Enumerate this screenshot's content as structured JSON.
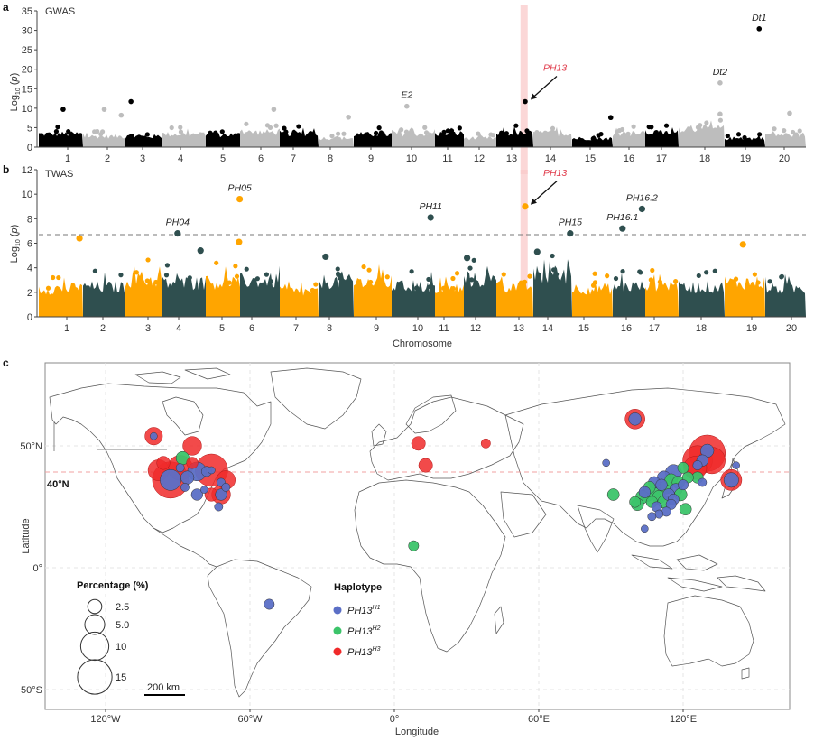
{
  "figure": {
    "panels": [
      "a",
      "b",
      "c"
    ]
  },
  "colors": {
    "gwas_dark": "#000000",
    "gwas_light": "#bdbdbd",
    "twas_orange": "#ffa500",
    "twas_dark": "#2f4f4f",
    "highlight_band": "#f9c9c9",
    "ph13_red": "#e03a4a",
    "hap_h1": "#5b6fc6",
    "hap_h2": "#3cc46a",
    "hap_h3": "#f02a2a",
    "lat40_line": "#f0a0a0",
    "map_border": "#555555"
  },
  "chart_data": [
    {
      "type": "scatter",
      "subtype": "manhattan",
      "panel": "a",
      "title": "GWAS",
      "xlabel": "",
      "ylabel": "Log10 (p)",
      "ylim": [
        0,
        35
      ],
      "yticks": [
        0,
        5,
        10,
        15,
        20,
        25,
        30,
        35
      ],
      "categories": [
        "1",
        "2",
        "3",
        "4",
        "5",
        "6",
        "7",
        "8",
        "9",
        "10",
        "11",
        "12",
        "13",
        "14",
        "15",
        "16",
        "17",
        "18",
        "19",
        "20"
      ],
      "threshold": 8.0,
      "highlight_chromosome_position": 13.3,
      "highlight_label": "PH13",
      "background_max_by_chromosome": [
        5.3,
        4.3,
        4.3,
        5.2,
        5.0,
        6.0,
        5.5,
        3.6,
        5.1,
        5.4,
        5.5,
        3.6,
        5.6,
        5.5,
        3.5,
        5.5,
        5.7,
        7.5,
        3.5,
        5.0
      ],
      "annotated_points": [
        {
          "chromosome": 1,
          "pos": 0.55,
          "value": 9.7,
          "label": ""
        },
        {
          "chromosome": 2,
          "pos": 0.5,
          "value": 9.7,
          "label": ""
        },
        {
          "chromosome": 2,
          "pos": 0.9,
          "value": 8.2,
          "label": ""
        },
        {
          "chromosome": 3,
          "pos": 0.15,
          "value": 11.7,
          "label": ""
        },
        {
          "chromosome": 6,
          "pos": 0.85,
          "value": 9.7,
          "label": ""
        },
        {
          "chromosome": 8,
          "pos": 0.85,
          "value": 7.7,
          "label": ""
        },
        {
          "chromosome": 10,
          "pos": 0.35,
          "value": 10.5,
          "label": "E2"
        },
        {
          "chromosome": 13,
          "pos": 0.78,
          "value": 11.7,
          "label": "PH13"
        },
        {
          "chromosome": 15,
          "pos": 0.95,
          "value": 7.6,
          "label": ""
        },
        {
          "chromosome": 18,
          "pos": 0.9,
          "value": 16.5,
          "label": "Dt2"
        },
        {
          "chromosome": 18,
          "pos": 0.9,
          "value": 8.5,
          "label": ""
        },
        {
          "chromosome": 19,
          "pos": 0.85,
          "value": 30.4,
          "label": "Dt1"
        },
        {
          "chromosome": 20,
          "pos": 0.6,
          "value": 8.7,
          "label": ""
        }
      ]
    },
    {
      "type": "scatter",
      "subtype": "manhattan",
      "panel": "b",
      "title": "TWAS",
      "xlabel": "Chromosome",
      "ylabel": "Log10 (p)",
      "ylim": [
        0,
        12
      ],
      "yticks": [
        0,
        2,
        4,
        6,
        8,
        10,
        12
      ],
      "categories": [
        "1",
        "2",
        "3",
        "4",
        "5",
        "6",
        "7",
        "8",
        "9",
        "10",
        "11",
        "12",
        "13",
        "14",
        "15",
        "16",
        "17",
        "18",
        "19",
        "20"
      ],
      "threshold": 6.7,
      "highlight_chromosome_position": 13.3,
      "highlight_label": "PH13",
      "background_max_by_chromosome": [
        3.6,
        3.8,
        4.7,
        4.3,
        4.4,
        4.6,
        3.2,
        4.5,
        4.4,
        3.9,
        3.6,
        4.7,
        3.9,
        5.2,
        3.6,
        3.9,
        4.1,
        3.8,
        4.4,
        3.6
      ],
      "annotated_points": [
        {
          "chromosome": 1,
          "pos": 0.92,
          "value": 6.4,
          "label": ""
        },
        {
          "chromosome": 4,
          "pos": 0.35,
          "value": 6.8,
          "label": "PH04"
        },
        {
          "chromosome": 4,
          "pos": 0.88,
          "value": 5.4,
          "label": ""
        },
        {
          "chromosome": 5,
          "pos": 0.97,
          "value": 6.1,
          "label": ""
        },
        {
          "chromosome": 5,
          "pos": 0.99,
          "value": 9.6,
          "label": "PH05"
        },
        {
          "chromosome": 8,
          "pos": 0.2,
          "value": 4.9,
          "label": ""
        },
        {
          "chromosome": 10,
          "pos": 0.9,
          "value": 8.1,
          "label": "PH11"
        },
        {
          "chromosome": 12,
          "pos": 0.1,
          "value": 4.8,
          "label": ""
        },
        {
          "chromosome": 13,
          "pos": 0.78,
          "value": 9.0,
          "label": "PH13"
        },
        {
          "chromosome": 14,
          "pos": 0.1,
          "value": 5.3,
          "label": ""
        },
        {
          "chromosome": 14,
          "pos": 0.95,
          "value": 6.8,
          "label": "PH15"
        },
        {
          "chromosome": 16,
          "pos": 0.3,
          "value": 7.2,
          "label": "PH16.1"
        },
        {
          "chromosome": 16,
          "pos": 0.9,
          "value": 8.8,
          "label": "PH16.2"
        },
        {
          "chromosome": 19,
          "pos": 0.45,
          "value": 5.9,
          "label": ""
        }
      ]
    },
    {
      "type": "scatter",
      "subtype": "bubble-map",
      "panel": "c",
      "xlabel": "Longitude",
      "ylabel": "Latitude",
      "xlim": [
        -150,
        160
      ],
      "ylim": [
        -60,
        85
      ],
      "xticks": [
        "120°W",
        "60°W",
        "0°",
        "60°E",
        "120°E"
      ],
      "xtick_values": [
        -120,
        -60,
        0,
        60,
        120
      ],
      "yticks": [
        "50°S",
        "0°",
        "50°N"
      ],
      "ytick_values": [
        -50,
        0,
        50
      ],
      "reference_line": {
        "lat": 40,
        "label": "40°N"
      },
      "scale_bar": "200 km",
      "size_legend": {
        "title": "Percentage (%)",
        "values": [
          2.5,
          5.0,
          10,
          15
        ],
        "labels": [
          "2.5",
          "5.0",
          "10",
          "15"
        ]
      },
      "color_legend": {
        "title": "Haplotype",
        "entries": [
          {
            "name": "PH13",
            "sup": "H1",
            "key": "H1"
          },
          {
            "name": "PH13",
            "sup": "H2",
            "key": "H2"
          },
          {
            "name": "PH13",
            "sup": "H3",
            "key": "H3"
          }
        ]
      },
      "points": [
        {
          "lon": -100,
          "lat": 54,
          "pct": 3.5,
          "hap": "H3"
        },
        {
          "lon": -100,
          "lat": 54,
          "pct": 0.6,
          "hap": "H1"
        },
        {
          "lon": -84,
          "lat": 50,
          "pct": 4.0,
          "hap": "H3"
        },
        {
          "lon": -88,
          "lat": 45,
          "pct": 2.0,
          "hap": "H2"
        },
        {
          "lon": -96,
          "lat": 43,
          "pct": 2.0,
          "hap": "H3"
        },
        {
          "lon": -98,
          "lat": 40,
          "pct": 5.0,
          "hap": "H3"
        },
        {
          "lon": -89,
          "lat": 41,
          "pct": 7.0,
          "hap": "H3"
        },
        {
          "lon": -89,
          "lat": 41,
          "pct": 0.8,
          "hap": "H1"
        },
        {
          "lon": -84,
          "lat": 43,
          "pct": 1.5,
          "hap": "H3"
        },
        {
          "lon": -82,
          "lat": 39.5,
          "pct": 4.0,
          "hap": "H1"
        },
        {
          "lon": -76,
          "lat": 40,
          "pct": 12.0,
          "hap": "H3"
        },
        {
          "lon": -76,
          "lat": 40,
          "pct": 0.6,
          "hap": "H1"
        },
        {
          "lon": -78,
          "lat": 39.5,
          "pct": 1.2,
          "hap": "H1"
        },
        {
          "lon": -93,
          "lat": 36,
          "pct": 15.0,
          "hap": "H3"
        },
        {
          "lon": -93,
          "lat": 36,
          "pct": 5.0,
          "hap": "H1"
        },
        {
          "lon": -86,
          "lat": 37,
          "pct": 2.0,
          "hap": "H1"
        },
        {
          "lon": -70,
          "lat": 36,
          "pct": 4.0,
          "hap": "H3"
        },
        {
          "lon": -72,
          "lat": 35,
          "pct": 0.8,
          "hap": "H1"
        },
        {
          "lon": -87,
          "lat": 33,
          "pct": 0.8,
          "hap": "H1"
        },
        {
          "lon": -79,
          "lat": 32,
          "pct": 0.6,
          "hap": "H1"
        },
        {
          "lon": -82,
          "lat": 30,
          "pct": 1.5,
          "hap": "H1"
        },
        {
          "lon": -76,
          "lat": 30,
          "pct": 2.0,
          "hap": "H3"
        },
        {
          "lon": -72,
          "lat": 30,
          "pct": 4.0,
          "hap": "H3"
        },
        {
          "lon": -72,
          "lat": 30,
          "pct": 1.5,
          "hap": "H1"
        },
        {
          "lon": -70,
          "lat": 33,
          "pct": 0.8,
          "hap": "H1"
        },
        {
          "lon": -73,
          "lat": 25,
          "pct": 0.8,
          "hap": "H1"
        },
        {
          "lon": -52,
          "lat": -15,
          "pct": 1.2,
          "hap": "H1"
        },
        {
          "lon": 10,
          "lat": 51,
          "pct": 2.2,
          "hap": "H3"
        },
        {
          "lon": 13,
          "lat": 42,
          "pct": 2.2,
          "hap": "H3"
        },
        {
          "lon": 38,
          "lat": 51,
          "pct": 1.0,
          "hap": "H3"
        },
        {
          "lon": 8,
          "lat": 9,
          "pct": 1.2,
          "hap": "H2"
        },
        {
          "lon": 100,
          "lat": 61,
          "pct": 4.5,
          "hap": "H3"
        },
        {
          "lon": 100,
          "lat": 61,
          "pct": 1.8,
          "hap": "H1"
        },
        {
          "lon": 130,
          "lat": 47,
          "pct": 15.0,
          "hap": "H3"
        },
        {
          "lon": 132,
          "lat": 44,
          "pct": 8.0,
          "hap": "H3"
        },
        {
          "lon": 126,
          "lat": 44,
          "pct": 10.0,
          "hap": "H3"
        },
        {
          "lon": 125,
          "lat": 41,
          "pct": 6.0,
          "hap": "H3"
        },
        {
          "lon": 130,
          "lat": 48,
          "pct": 2.0,
          "hap": "H1"
        },
        {
          "lon": 128,
          "lat": 44,
          "pct": 1.5,
          "hap": "H1"
        },
        {
          "lon": 126,
          "lat": 42,
          "pct": 1.0,
          "hap": "H1"
        },
        {
          "lon": 140,
          "lat": 36,
          "pct": 5.0,
          "hap": "H3"
        },
        {
          "lon": 140,
          "lat": 36,
          "pct": 2.5,
          "hap": "H1"
        },
        {
          "lon": 126,
          "lat": 37,
          "pct": 1.5,
          "hap": "H2"
        },
        {
          "lon": 116,
          "lat": 39,
          "pct": 3.0,
          "hap": "H1"
        },
        {
          "lon": 112,
          "lat": 37,
          "pct": 2.0,
          "hap": "H1"
        },
        {
          "lon": 115,
          "lat": 36,
          "pct": 1.8,
          "hap": "H2"
        },
        {
          "lon": 118,
          "lat": 35,
          "pct": 1.8,
          "hap": "H2"
        },
        {
          "lon": 111,
          "lat": 34,
          "pct": 1.5,
          "hap": "H1"
        },
        {
          "lon": 113,
          "lat": 33,
          "pct": 2.0,
          "hap": "H2"
        },
        {
          "lon": 117,
          "lat": 32,
          "pct": 1.8,
          "hap": "H1"
        },
        {
          "lon": 108,
          "lat": 31,
          "pct": 2.0,
          "hap": "H2"
        },
        {
          "lon": 105,
          "lat": 30,
          "pct": 2.2,
          "hap": "H2"
        },
        {
          "lon": 103,
          "lat": 29,
          "pct": 2.0,
          "hap": "H2"
        },
        {
          "lon": 104,
          "lat": 31,
          "pct": 1.5,
          "hap": "H1"
        },
        {
          "lon": 110,
          "lat": 29,
          "pct": 2.0,
          "hap": "H2"
        },
        {
          "lon": 114,
          "lat": 30,
          "pct": 1.6,
          "hap": "H1"
        },
        {
          "lon": 119,
          "lat": 30,
          "pct": 1.8,
          "hap": "H2"
        },
        {
          "lon": 112,
          "lat": 27,
          "pct": 1.8,
          "hap": "H2"
        },
        {
          "lon": 107,
          "lat": 27,
          "pct": 1.5,
          "hap": "H2"
        },
        {
          "lon": 101,
          "lat": 26,
          "pct": 1.8,
          "hap": "H2"
        },
        {
          "lon": 115,
          "lat": 26,
          "pct": 1.2,
          "hap": "H1"
        },
        {
          "lon": 109,
          "lat": 25,
          "pct": 1.2,
          "hap": "H1"
        },
        {
          "lon": 113,
          "lat": 23,
          "pct": 1.0,
          "hap": "H1"
        },
        {
          "lon": 110,
          "lat": 22,
          "pct": 0.8,
          "hap": "H1"
        },
        {
          "lon": 107,
          "lat": 21,
          "pct": 0.8,
          "hap": "H1"
        },
        {
          "lon": 121,
          "lat": 24,
          "pct": 1.6,
          "hap": "H2"
        },
        {
          "lon": 91,
          "lat": 30,
          "pct": 1.6,
          "hap": "H2"
        },
        {
          "lon": 88,
          "lat": 43,
          "pct": 0.6,
          "hap": "H1"
        },
        {
          "lon": 104,
          "lat": 16,
          "pct": 0.6,
          "hap": "H1"
        },
        {
          "lon": 122,
          "lat": 37,
          "pct": 1.4,
          "hap": "H2"
        },
        {
          "lon": 120,
          "lat": 41,
          "pct": 1.4,
          "hap": "H2"
        },
        {
          "lon": 108,
          "lat": 35,
          "pct": 1.6,
          "hap": "H1"
        },
        {
          "lon": 106,
          "lat": 33,
          "pct": 1.6,
          "hap": "H2"
        },
        {
          "lon": 100,
          "lat": 27,
          "pct": 1.4,
          "hap": "H2"
        },
        {
          "lon": 116,
          "lat": 28,
          "pct": 1.4,
          "hap": "H1"
        },
        {
          "lon": 120,
          "lat": 34,
          "pct": 1.2,
          "hap": "H1"
        },
        {
          "lon": 128,
          "lat": 35,
          "pct": 0.8,
          "hap": "H1"
        },
        {
          "lon": 142,
          "lat": 42,
          "pct": 0.6,
          "hap": "H1"
        }
      ]
    }
  ]
}
